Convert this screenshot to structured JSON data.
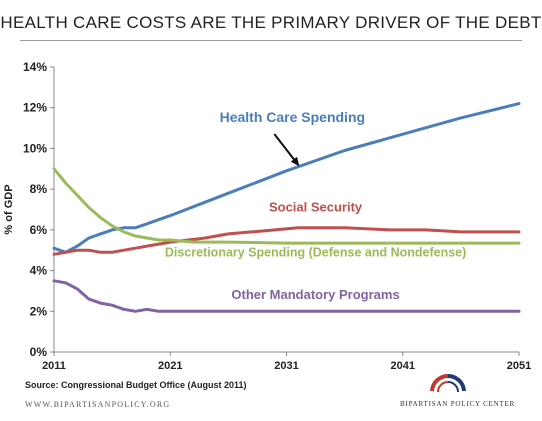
{
  "title": "HEALTH CARE COSTS ARE THE PRIMARY DRIVER OF THE DEBT",
  "source": "Source: Congressional Budget Office (August 2011)",
  "footer_left": "WWW.BIPARTISANPOLICY.ORG",
  "footer_right": "BIPARTISAN POLICY CENTER",
  "colors": {
    "health": "#4a7ebb",
    "social": "#c0504d",
    "discretionary": "#9bbb59",
    "other": "#8064a2",
    "logo_red": "#c0392b",
    "logo_blue": "#1f3b73"
  },
  "chart_data": {
    "type": "line",
    "ylabel": "% of GDP",
    "xlabel": "",
    "xlim": [
      2011,
      2051
    ],
    "ylim": [
      0,
      14
    ],
    "xticks": [
      2011,
      2021,
      2031,
      2041,
      2051
    ],
    "yticks": [
      0,
      2,
      4,
      6,
      8,
      10,
      12,
      14
    ],
    "ytick_labels": [
      "0%",
      "2%",
      "4%",
      "6%",
      "8%",
      "10%",
      "12%",
      "14%"
    ],
    "grid": false,
    "series": [
      {
        "name": "Health Care Spending",
        "color": "#4a7ebb",
        "x": [
          2011,
          2012,
          2013,
          2014,
          2015,
          2016,
          2017,
          2018,
          2019,
          2020,
          2021,
          2026,
          2031,
          2036,
          2041,
          2046,
          2051
        ],
        "y": [
          5.1,
          4.9,
          5.2,
          5.6,
          5.8,
          6.0,
          6.1,
          6.1,
          6.3,
          6.5,
          6.7,
          7.8,
          8.9,
          9.9,
          10.7,
          11.5,
          12.2
        ]
      },
      {
        "name": "Social Security",
        "color": "#c0504d",
        "x": [
          2011,
          2012,
          2013,
          2014,
          2015,
          2016,
          2017,
          2018,
          2019,
          2020,
          2021,
          2024,
          2026,
          2028,
          2030,
          2032,
          2034,
          2036,
          2040,
          2043,
          2046,
          2051
        ],
        "y": [
          4.8,
          4.9,
          5.0,
          5.0,
          4.9,
          4.9,
          5.0,
          5.1,
          5.2,
          5.3,
          5.4,
          5.6,
          5.8,
          5.9,
          6.0,
          6.1,
          6.1,
          6.1,
          6.0,
          6.0,
          5.9,
          5.9
        ]
      },
      {
        "name": "Discretionary Spending (Defense and Nondefense)",
        "color": "#9bbb59",
        "x": [
          2011,
          2012,
          2013,
          2014,
          2015,
          2016,
          2017,
          2018,
          2019,
          2020,
          2021,
          2023,
          2026,
          2031,
          2041,
          2051
        ],
        "y": [
          9.0,
          8.3,
          7.7,
          7.1,
          6.6,
          6.2,
          5.9,
          5.7,
          5.6,
          5.5,
          5.5,
          5.4,
          5.4,
          5.35,
          5.35,
          5.35
        ]
      },
      {
        "name": "Other Mandatory Programs",
        "color": "#8064a2",
        "x": [
          2011,
          2012,
          2013,
          2014,
          2015,
          2016,
          2017,
          2018,
          2019,
          2020,
          2021,
          2031,
          2041,
          2051
        ],
        "y": [
          3.5,
          3.4,
          3.1,
          2.6,
          2.4,
          2.3,
          2.1,
          2.0,
          2.1,
          2.0,
          2.0,
          2.0,
          2.0,
          2.0
        ]
      }
    ],
    "annotations": [
      {
        "text": "Health Care Spending",
        "series": 0,
        "x": 2031.5,
        "y": 11.3,
        "arrow_to": [
          2032,
          9.2
        ]
      },
      {
        "text": "Social Security",
        "series": 1,
        "x": 2033.5,
        "y": 6.9
      },
      {
        "text": "Discretionary Spending (Defense and Nondefense)",
        "series": 2,
        "x": 2033.5,
        "y": 4.7
      },
      {
        "text": "Other Mandatory Programs",
        "series": 3,
        "x": 2033.5,
        "y": 2.6
      }
    ]
  }
}
